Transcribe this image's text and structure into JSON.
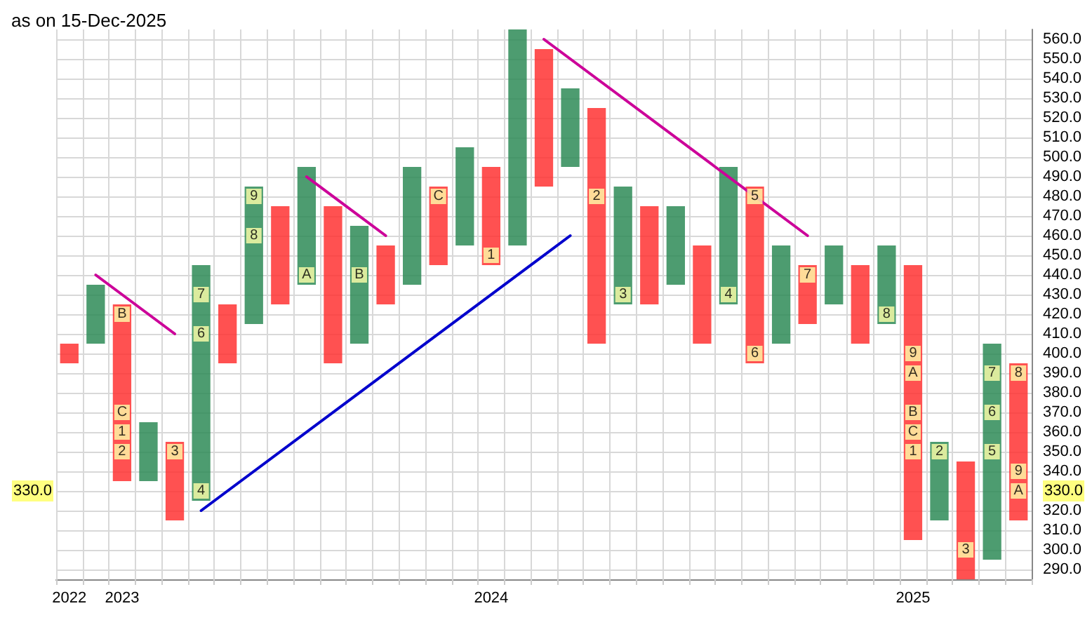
{
  "chart_data": {
    "type": "bar",
    "title": "as on 15-Dec-2025",
    "categories": [
      "2022",
      null,
      "2023",
      null,
      null,
      null,
      null,
      null,
      null,
      null,
      null,
      null,
      null,
      null,
      null,
      null,
      "2024",
      null,
      null,
      null,
      null,
      null,
      null,
      null,
      null,
      null,
      null,
      null,
      null,
      null,
      null,
      null,
      "2025",
      null,
      null,
      null,
      null
    ],
    "series": [
      {
        "color": "#2e8b57",
        "base": [
          null,
          405,
          null,
          335,
          null,
          325,
          null,
          415,
          null,
          435,
          null,
          405,
          null,
          435,
          null,
          455,
          null,
          455,
          null,
          495,
          null,
          425,
          null,
          435,
          null,
          425,
          null,
          405,
          null,
          425,
          null,
          415,
          null,
          315,
          null,
          295,
          null
        ],
        "values": [
          null,
          30,
          null,
          30,
          null,
          120,
          null,
          70,
          null,
          60,
          null,
          60,
          null,
          60,
          null,
          50,
          null,
          110,
          null,
          40,
          null,
          60,
          null,
          40,
          null,
          70,
          null,
          50,
          null,
          30,
          null,
          40,
          null,
          40,
          null,
          110,
          null
        ]
      },
      {
        "color": "#ff3333",
        "base": [
          395,
          null,
          335,
          null,
          315,
          null,
          395,
          null,
          425,
          null,
          395,
          null,
          425,
          null,
          445,
          null,
          445,
          null,
          485,
          null,
          405,
          null,
          425,
          null,
          405,
          null,
          395,
          null,
          415,
          null,
          405,
          null,
          305,
          null,
          285,
          null,
          315
        ],
        "values": [
          10,
          null,
          90,
          null,
          40,
          null,
          30,
          null,
          50,
          null,
          80,
          null,
          30,
          null,
          40,
          null,
          50,
          null,
          70,
          null,
          120,
          null,
          50,
          null,
          50,
          null,
          90,
          null,
          30,
          null,
          40,
          null,
          140,
          null,
          60,
          null,
          80
        ]
      },
      {
        "type": "line",
        "color": "#cc0099",
        "values": [
          null,
          440,
          null,
          null,
          410,
          null,
          null,
          null,
          null,
          null,
          null,
          null,
          null,
          null,
          null,
          null,
          null,
          null,
          null,
          null,
          null,
          null,
          null,
          null,
          null,
          null,
          null,
          null,
          null,
          null,
          null,
          null,
          null,
          null,
          null,
          null,
          null
        ]
      },
      {
        "type": "line",
        "color": "#cc0099",
        "values": [
          null,
          null,
          null,
          null,
          null,
          null,
          null,
          null,
          null,
          490,
          null,
          null,
          460,
          null,
          null,
          null,
          null,
          null,
          null,
          null,
          null,
          null,
          null,
          null,
          null,
          null,
          null,
          null,
          null,
          null,
          null,
          null,
          null,
          null,
          null,
          null,
          null
        ]
      },
      {
        "type": "line",
        "color": "#cc0099",
        "values": [
          null,
          null,
          null,
          null,
          null,
          null,
          null,
          null,
          null,
          null,
          null,
          null,
          null,
          null,
          null,
          null,
          null,
          null,
          560,
          null,
          null,
          null,
          null,
          null,
          null,
          null,
          null,
          null,
          460,
          null,
          null,
          null,
          null,
          null,
          null,
          null,
          null
        ]
      },
      {
        "type": "line",
        "color": "#0000cc",
        "values": [
          null,
          null,
          null,
          null,
          null,
          320,
          null,
          null,
          null,
          null,
          null,
          null,
          null,
          null,
          null,
          null,
          null,
          null,
          null,
          460,
          null,
          null,
          null,
          null,
          null,
          null,
          null,
          null,
          null,
          null,
          null,
          null,
          null,
          null,
          null,
          null,
          null
        ]
      },
      {
        "type": "scatter",
        "color": "#ffffaa",
        "marker": "square",
        "values": [
          null,
          null,
          420,
          null,
          350,
          330,
          null,
          460,
          null,
          440,
          null,
          440,
          null,
          null,
          480,
          null,
          450,
          null,
          null,
          null,
          480,
          430,
          null,
          null,
          null,
          430,
          480,
          null,
          440,
          null,
          null,
          420,
          400,
          350,
          300,
          350,
          390
        ]
      },
      {
        "type": "scatter",
        "color": "#ffffaa",
        "marker": "square",
        "values": [
          null,
          null,
          370,
          null,
          null,
          410,
          null,
          480,
          null,
          null,
          null,
          null,
          null,
          null,
          null,
          null,
          null,
          null,
          null,
          null,
          null,
          null,
          null,
          null,
          null,
          null,
          400,
          null,
          null,
          null,
          null,
          null,
          390,
          null,
          null,
          370,
          340
        ]
      },
      {
        "type": "scatter",
        "color": "#ffffaa",
        "marker": "square",
        "values": [
          null,
          null,
          360,
          null,
          null,
          430,
          null,
          null,
          null,
          null,
          null,
          null,
          null,
          null,
          null,
          null,
          null,
          null,
          null,
          null,
          null,
          null,
          null,
          null,
          null,
          null,
          null,
          null,
          null,
          null,
          null,
          null,
          370,
          null,
          null,
          390,
          330
        ]
      },
      {
        "type": "scatter",
        "color": "#ffffaa",
        "marker": "square",
        "values": [
          null,
          null,
          350,
          null,
          null,
          null,
          null,
          null,
          null,
          null,
          null,
          null,
          null,
          null,
          null,
          null,
          null,
          null,
          null,
          null,
          null,
          null,
          null,
          null,
          null,
          null,
          null,
          null,
          null,
          null,
          null,
          null,
          360,
          null,
          null,
          null,
          null
        ]
      },
      {
        "type": "scatter",
        "color": "#ffffaa",
        "marker": "square",
        "values": [
          null,
          null,
          null,
          null,
          null,
          null,
          null,
          null,
          null,
          null,
          null,
          null,
          null,
          null,
          null,
          null,
          null,
          null,
          null,
          null,
          null,
          null,
          null,
          null,
          null,
          null,
          null,
          null,
          null,
          null,
          null,
          null,
          350,
          null,
          null,
          null,
          null
        ]
      }
    ],
    "marker": "none",
    "ylim": [
      285,
      565
    ],
    "yticks": [
      {
        "value": 290,
        "label": "290.0"
      },
      {
        "value": 300,
        "label": "300.0"
      },
      {
        "value": 310,
        "label": "310.0"
      },
      {
        "value": 320,
        "label": "320.0"
      },
      {
        "value": 330,
        "label": "330.0"
      },
      {
        "value": 340,
        "label": "340.0"
      },
      {
        "value": 350,
        "label": "350.0"
      },
      {
        "value": 360,
        "label": "360.0"
      },
      {
        "value": 370,
        "label": "370.0"
      },
      {
        "value": 380,
        "label": "380.0"
      },
      {
        "value": 390,
        "label": "390.0"
      },
      {
        "value": 400,
        "label": "400.0"
      },
      {
        "value": 410,
        "label": "410.0"
      },
      {
        "value": 420,
        "label": "420.0"
      },
      {
        "value": 430,
        "label": "430.0"
      },
      {
        "value": 440,
        "label": "440.0"
      },
      {
        "value": 450,
        "label": "450.0"
      },
      {
        "value": 460,
        "label": "460.0"
      },
      {
        "value": 470,
        "label": "470.0"
      },
      {
        "value": 480,
        "label": "480.0"
      },
      {
        "value": 490,
        "label": "490.0"
      },
      {
        "value": 500,
        "label": "500.0"
      },
      {
        "value": 510,
        "label": "510.0"
      },
      {
        "value": 520,
        "label": "520.0"
      },
      {
        "value": 530,
        "label": "530.0"
      },
      {
        "value": 540,
        "label": "540.0"
      },
      {
        "value": 550,
        "label": "550.0"
      },
      {
        "value": 560,
        "label": "560.0"
      }
    ],
    "annotations": [
      {
        "text": "330.0",
        "y": 330
      },
      "B",
      "3",
      "4",
      "8",
      "A",
      "B",
      "C",
      "1",
      "2",
      "3",
      "4",
      "5",
      "7",
      "8",
      "9",
      "2",
      "3",
      "5",
      "8",
      "C",
      "6",
      "9",
      "6",
      "A",
      "6",
      "9",
      "1",
      "7",
      "B",
      "7",
      "A",
      "2",
      "C",
      "1"
    ],
    "grid": true
  }
}
